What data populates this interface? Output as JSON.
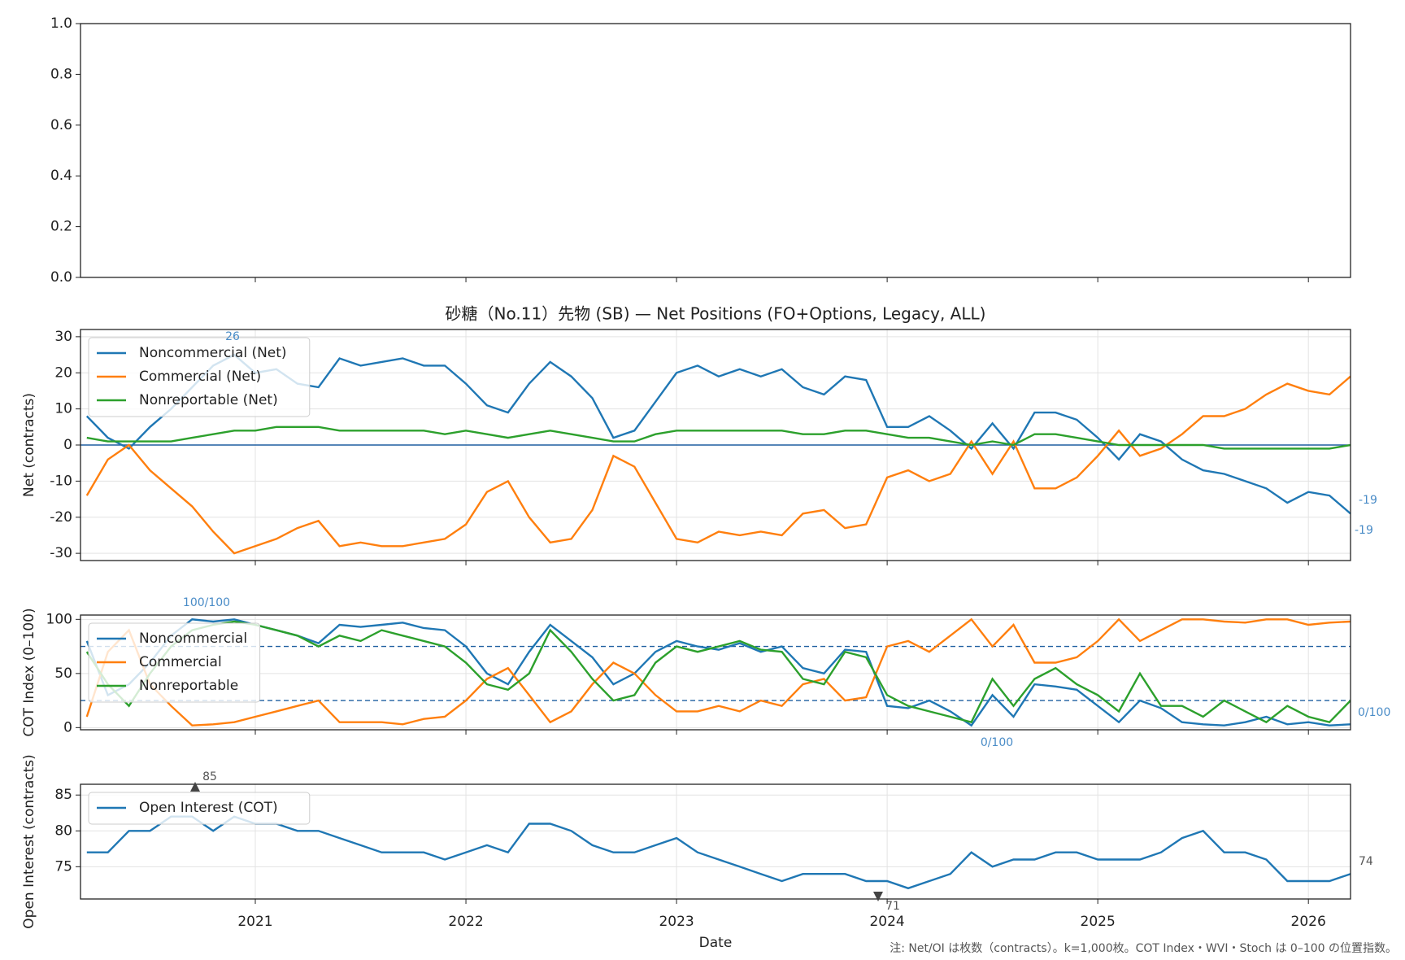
{
  "note": "注: Net/OI は枚数（contracts）。k=1,000枚。COT Index・WVI・Stoch は 0–100 の位置指数。",
  "chart_data": [
    {
      "type": "line",
      "xlim": [
        2020.17,
        2026.2
      ],
      "xticks": [
        2021,
        2022,
        2023,
        2024,
        2025,
        2026
      ],
      "ylim": [
        0,
        1
      ],
      "yticks": [
        {
          "value": 0,
          "label": "0.0"
        },
        {
          "value": 0.2,
          "label": "0.2"
        },
        {
          "value": 0.4,
          "label": "0.4"
        },
        {
          "value": 0.6,
          "label": "0.6"
        },
        {
          "value": 0.8,
          "label": "0.8"
        },
        {
          "value": 1,
          "label": "1.0"
        }
      ],
      "grid": false
    },
    {
      "type": "line",
      "title": "砂糖（No.11）先物 (SB) — Net Positions (FO+Options, Legacy, ALL)",
      "ylabel": "Net (contracts)",
      "xlim": [
        2020.17,
        2026.2
      ],
      "xticks": [
        2021,
        2022,
        2023,
        2024,
        2025,
        2026
      ],
      "ylim": [
        -32,
        32
      ],
      "yticks": [
        -30,
        -20,
        -10,
        0,
        10,
        20,
        30
      ],
      "grid": true,
      "legend": "upper left",
      "hlines": [
        0
      ],
      "hline_style": "solid",
      "x": [
        2020.2,
        2020.3,
        2020.4,
        2020.5,
        2020.6,
        2020.7,
        2020.8,
        2020.9,
        2021.0,
        2021.1,
        2021.2,
        2021.3,
        2021.4,
        2021.5,
        2021.6,
        2021.7,
        2021.8,
        2021.9,
        2022.0,
        2022.1,
        2022.2,
        2022.3,
        2022.4,
        2022.5,
        2022.6,
        2022.7,
        2022.8,
        2022.9,
        2023.0,
        2023.1,
        2023.2,
        2023.3,
        2023.4,
        2023.5,
        2023.6,
        2023.7,
        2023.8,
        2023.9,
        2024.0,
        2024.1,
        2024.2,
        2024.3,
        2024.4,
        2024.5,
        2024.6,
        2024.7,
        2024.8,
        2024.9,
        2025.0,
        2025.1,
        2025.2,
        2025.3,
        2025.4,
        2025.5,
        2025.6,
        2025.7,
        2025.8,
        2025.9,
        2026.0,
        2026.1,
        2026.2
      ],
      "series": [
        {
          "name": "Noncommercial (Net)",
          "color": "#1f77b4",
          "values": [
            8,
            2,
            -1,
            5,
            10,
            16,
            22,
            25,
            20,
            21,
            17,
            16,
            24,
            22,
            23,
            24,
            22,
            22,
            17,
            11,
            9,
            17,
            23,
            19,
            13,
            2,
            4,
            12,
            20,
            22,
            19,
            21,
            19,
            21,
            16,
            14,
            19,
            18,
            5,
            5,
            8,
            4,
            -1,
            6,
            -1,
            9,
            9,
            7,
            2,
            -4,
            3,
            1,
            -4,
            -7,
            -8,
            -10,
            -12,
            -16,
            -13,
            -14,
            -19
          ]
        },
        {
          "name": "Commercial (Net)",
          "color": "#ff7f0e",
          "values": [
            -14,
            -4,
            0,
            -7,
            -12,
            -17,
            -24,
            -30,
            -28,
            -26,
            -23,
            -21,
            -28,
            -27,
            -28,
            -28,
            -27,
            -26,
            -22,
            -13,
            -10,
            -20,
            -27,
            -26,
            -18,
            -3,
            -6,
            -16,
            -26,
            -27,
            -24,
            -25,
            -24,
            -25,
            -19,
            -18,
            -23,
            -22,
            -9,
            -7,
            -10,
            -8,
            1,
            -8,
            1,
            -12,
            -12,
            -9,
            -3,
            4,
            -3,
            -1,
            3,
            8,
            8,
            10,
            14,
            17,
            15,
            14,
            19
          ]
        },
        {
          "name": "Nonreportable (Net)",
          "color": "#2ca02c",
          "values": [
            2,
            1,
            1,
            1,
            1,
            2,
            3,
            4,
            4,
            5,
            5,
            5,
            4,
            4,
            4,
            4,
            4,
            3,
            4,
            3,
            2,
            3,
            4,
            3,
            2,
            1,
            1,
            3,
            4,
            4,
            4,
            4,
            4,
            4,
            3,
            3,
            4,
            4,
            3,
            2,
            2,
            1,
            0,
            1,
            0,
            3,
            3,
            2,
            1,
            0,
            0,
            0,
            0,
            0,
            -1,
            -1,
            -1,
            -1,
            -1,
            -1,
            0
          ]
        }
      ],
      "annotations": [
        {
          "text": "26"
        },
        {
          "text": "-19"
        },
        {
          "text": "-19"
        }
      ]
    },
    {
      "type": "line",
      "ylabel": "COT Index (0–100)",
      "xlim": [
        2020.17,
        2026.2
      ],
      "xticks": [
        2021,
        2022,
        2023,
        2024,
        2025,
        2026
      ],
      "ylim": [
        -2,
        104
      ],
      "yticks": [
        0,
        50,
        100
      ],
      "grid": true,
      "legend": "upper left",
      "hlines": [
        25,
        75
      ],
      "hline_style": "dashed",
      "x": [
        2020.2,
        2020.3,
        2020.4,
        2020.5,
        2020.6,
        2020.7,
        2020.8,
        2020.9,
        2021.0,
        2021.1,
        2021.2,
        2021.3,
        2021.4,
        2021.5,
        2021.6,
        2021.7,
        2021.8,
        2021.9,
        2022.0,
        2022.1,
        2022.2,
        2022.3,
        2022.4,
        2022.5,
        2022.6,
        2022.7,
        2022.8,
        2022.9,
        2023.0,
        2023.1,
        2023.2,
        2023.3,
        2023.4,
        2023.5,
        2023.6,
        2023.7,
        2023.8,
        2023.9,
        2024.0,
        2024.1,
        2024.2,
        2024.3,
        2024.4,
        2024.5,
        2024.6,
        2024.7,
        2024.8,
        2024.9,
        2025.0,
        2025.1,
        2025.2,
        2025.3,
        2025.4,
        2025.5,
        2025.6,
        2025.7,
        2025.8,
        2025.9,
        2026.0,
        2026.1,
        2026.2
      ],
      "series": [
        {
          "name": "Noncommercial",
          "color": "#1f77b4",
          "values": [
            80,
            30,
            40,
            60,
            85,
            100,
            98,
            100,
            95,
            90,
            85,
            78,
            95,
            93,
            95,
            97,
            92,
            90,
            75,
            50,
            40,
            70,
            95,
            80,
            65,
            40,
            50,
            70,
            80,
            75,
            72,
            78,
            70,
            75,
            55,
            50,
            72,
            70,
            20,
            18,
            25,
            15,
            2,
            30,
            10,
            40,
            38,
            35,
            20,
            5,
            25,
            18,
            5,
            3,
            2,
            5,
            10,
            3,
            5,
            2,
            3
          ]
        },
        {
          "name": "Commercial",
          "color": "#ff7f0e",
          "values": [
            10,
            70,
            90,
            40,
            20,
            2,
            3,
            5,
            10,
            15,
            20,
            25,
            5,
            5,
            5,
            3,
            8,
            10,
            25,
            45,
            55,
            30,
            5,
            15,
            40,
            60,
            50,
            30,
            15,
            15,
            20,
            15,
            25,
            20,
            40,
            45,
            25,
            28,
            75,
            80,
            70,
            85,
            100,
            75,
            95,
            60,
            60,
            65,
            80,
            100,
            80,
            90,
            100,
            100,
            98,
            97,
            100,
            100,
            95,
            97,
            98
          ]
        },
        {
          "name": "Nonreportable",
          "color": "#2ca02c",
          "values": [
            70,
            40,
            20,
            50,
            75,
            90,
            95,
            98,
            95,
            90,
            85,
            75,
            85,
            80,
            90,
            85,
            80,
            75,
            60,
            40,
            35,
            50,
            90,
            70,
            45,
            25,
            30,
            60,
            75,
            70,
            75,
            80,
            72,
            70,
            45,
            40,
            70,
            65,
            30,
            20,
            15,
            10,
            5,
            45,
            20,
            45,
            55,
            40,
            30,
            15,
            50,
            20,
            20,
            10,
            25,
            15,
            5,
            20,
            10,
            5,
            25
          ]
        }
      ],
      "annotations": [
        {
          "text": "100/100"
        },
        {
          "text": "0/100"
        },
        {
          "text": "0/100"
        }
      ]
    },
    {
      "type": "line",
      "ylabel": "Open Interest (contracts)",
      "xlabel": "Date",
      "xlim": [
        2020.17,
        2026.2
      ],
      "xticks": [
        2021,
        2022,
        2023,
        2024,
        2025,
        2026
      ],
      "ylim": [
        70.5,
        86.5
      ],
      "yticks": [
        75,
        80,
        85
      ],
      "grid": true,
      "legend": "upper left",
      "x": [
        2020.2,
        2020.3,
        2020.4,
        2020.5,
        2020.6,
        2020.7,
        2020.8,
        2020.9,
        2021.0,
        2021.1,
        2021.2,
        2021.3,
        2021.4,
        2021.5,
        2021.6,
        2021.7,
        2021.8,
        2021.9,
        2022.0,
        2022.1,
        2022.2,
        2022.3,
        2022.4,
        2022.5,
        2022.6,
        2022.7,
        2022.8,
        2022.9,
        2023.0,
        2023.1,
        2023.2,
        2023.3,
        2023.4,
        2023.5,
        2023.6,
        2023.7,
        2023.8,
        2023.9,
        2024.0,
        2024.1,
        2024.2,
        2024.3,
        2024.4,
        2024.5,
        2024.6,
        2024.7,
        2024.8,
        2024.9,
        2025.0,
        2025.1,
        2025.2,
        2025.3,
        2025.4,
        2025.5,
        2025.6,
        2025.7,
        2025.8,
        2025.9,
        2026.0,
        2026.1,
        2026.2
      ],
      "series": [
        {
          "name": "Open Interest (COT)",
          "color": "#1f77b4",
          "values": [
            77,
            77,
            80,
            80,
            82,
            82,
            80,
            82,
            81,
            81,
            80,
            80,
            79,
            78,
            77,
            77,
            77,
            76,
            77,
            78,
            77,
            81,
            81,
            80,
            78,
            77,
            77,
            78,
            79,
            77,
            76,
            75,
            74,
            73,
            74,
            74,
            74,
            73,
            73,
            72,
            73,
            74,
            77,
            75,
            76,
            76,
            77,
            77,
            76,
            76,
            76,
            77,
            79,
            80,
            77,
            77,
            76,
            73,
            73,
            73,
            74
          ]
        }
      ],
      "annotations": [
        {
          "text": "85"
        },
        {
          "text": "71"
        },
        {
          "text": "74"
        }
      ]
    }
  ]
}
